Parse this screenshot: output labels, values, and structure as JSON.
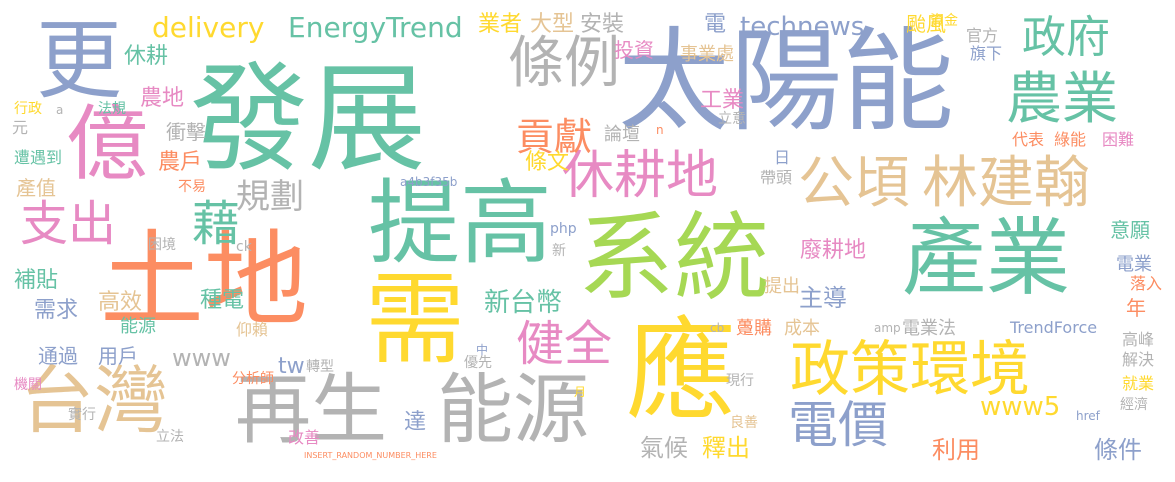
{
  "palette": {
    "green": "#66c2a5",
    "orange": "#fc8d62",
    "blue": "#8da0cb",
    "pink": "#e78ac3",
    "lime": "#a6d854",
    "yellow": "#ffd92f",
    "tan": "#e5c494",
    "gray": "#b3b3b3"
  },
  "words": [
    {
      "text": "發展",
      "color": "green",
      "size": 118
    },
    {
      "text": "太陽能",
      "color": "blue",
      "size": 112
    },
    {
      "text": "土地",
      "color": "orange",
      "size": 104
    },
    {
      "text": "系統",
      "color": "lime",
      "size": 96
    },
    {
      "text": "提高",
      "color": "green",
      "size": 92
    },
    {
      "text": "應",
      "color": "yellow",
      "size": 110
    },
    {
      "text": "需",
      "color": "yellow",
      "size": 100
    },
    {
      "text": "產業",
      "color": "green",
      "size": 84
    },
    {
      "text": "更",
      "color": "blue",
      "size": 86
    },
    {
      "text": "億",
      "color": "pink",
      "size": 82
    },
    {
      "text": "再生",
      "color": "gray",
      "size": 76
    },
    {
      "text": "能源",
      "color": "gray",
      "size": 76
    },
    {
      "text": "台灣",
      "color": "tan",
      "size": 74
    },
    {
      "text": "政策環境",
      "color": "yellow",
      "size": 60
    },
    {
      "text": "公頃",
      "color": "tan",
      "size": 56
    },
    {
      "text": "林建翰",
      "color": "tan",
      "size": 56
    },
    {
      "text": "條例",
      "color": "gray",
      "size": 56
    },
    {
      "text": "農業",
      "color": "green",
      "size": 56
    },
    {
      "text": "休耕地",
      "color": "pink",
      "size": 52
    },
    {
      "text": "電價",
      "color": "blue",
      "size": 50
    },
    {
      "text": "健全",
      "color": "pink",
      "size": 48
    },
    {
      "text": "支出",
      "color": "pink",
      "size": 48
    },
    {
      "text": "藉",
      "color": "green",
      "size": 48
    },
    {
      "text": "政府",
      "color": "green",
      "size": 44
    },
    {
      "text": "貢獻",
      "color": "orange",
      "size": 38
    },
    {
      "text": "規劃",
      "color": "gray",
      "size": 34
    },
    {
      "text": "EnergyTrend",
      "color": "green",
      "size": 28
    },
    {
      "text": "delivery",
      "color": "yellow",
      "size": 28
    },
    {
      "text": "technews",
      "color": "blue",
      "size": 26
    },
    {
      "text": "新台幣",
      "color": "green",
      "size": 26
    },
    {
      "text": "www5",
      "color": "yellow",
      "size": 26
    },
    {
      "text": "www",
      "color": "gray",
      "size": 24
    },
    {
      "text": "氣候",
      "color": "gray",
      "size": 24
    },
    {
      "text": "釋出",
      "color": "yellow",
      "size": 24
    },
    {
      "text": "利用",
      "color": "orange",
      "size": 24
    },
    {
      "text": "條件",
      "color": "blue",
      "size": 24
    },
    {
      "text": "達",
      "color": "blue",
      "size": 22
    },
    {
      "text": "tw",
      "color": "blue",
      "size": 22
    },
    {
      "text": "主導",
      "color": "blue",
      "size": 24
    },
    {
      "text": "廢耕地",
      "color": "pink",
      "size": 22
    },
    {
      "text": "高效",
      "color": "tan",
      "size": 22
    },
    {
      "text": "種電",
      "color": "green",
      "size": 22
    },
    {
      "text": "需求",
      "color": "blue",
      "size": 22
    },
    {
      "text": "能源",
      "color": "green",
      "size": 18
    },
    {
      "text": "補貼",
      "color": "green",
      "size": 22
    },
    {
      "text": "農地",
      "color": "pink",
      "size": 22
    },
    {
      "text": "休耕",
      "color": "green",
      "size": 22
    },
    {
      "text": "農戶",
      "color": "orange",
      "size": 22
    },
    {
      "text": "衝擊",
      "color": "gray",
      "size": 20
    },
    {
      "text": "條文",
      "color": "yellow",
      "size": 22
    },
    {
      "text": "工業",
      "color": "pink",
      "size": 22
    },
    {
      "text": "業者",
      "color": "yellow",
      "size": 22
    },
    {
      "text": "大型",
      "color": "tan",
      "size": 22
    },
    {
      "text": "安裝",
      "color": "gray",
      "size": 22
    },
    {
      "text": "電",
      "color": "blue",
      "size": 22
    },
    {
      "text": "投資",
      "color": "pink",
      "size": 20
    },
    {
      "text": "事業處",
      "color": "tan",
      "size": 18
    },
    {
      "text": "颱風",
      "color": "yellow",
      "size": 20
    },
    {
      "text": "官方",
      "color": "gray",
      "size": 16
    },
    {
      "text": "旗下",
      "color": "blue",
      "size": 16
    },
    {
      "text": "資金",
      "color": "yellow",
      "size": 14
    },
    {
      "text": "論壇",
      "color": "gray",
      "size": 18
    },
    {
      "text": "立意",
      "color": "gray",
      "size": 14
    },
    {
      "text": "代表",
      "color": "orange",
      "size": 16
    },
    {
      "text": "綠能",
      "color": "orange",
      "size": 16
    },
    {
      "text": "困難",
      "color": "pink",
      "size": 16
    },
    {
      "text": "帶頭",
      "color": "gray",
      "size": 16
    },
    {
      "text": "日",
      "color": "blue",
      "size": 16
    },
    {
      "text": "意願",
      "color": "green",
      "size": 20
    },
    {
      "text": "電業",
      "color": "blue",
      "size": 18
    },
    {
      "text": "落入",
      "color": "orange",
      "size": 16
    },
    {
      "text": "年",
      "color": "orange",
      "size": 20
    },
    {
      "text": "提出",
      "color": "tan",
      "size": 18
    },
    {
      "text": "成本",
      "color": "tan",
      "size": 18
    },
    {
      "text": "躉購",
      "color": "orange",
      "size": 18
    },
    {
      "text": "電業法",
      "color": "gray",
      "size": 18
    },
    {
      "text": "TrendForce",
      "color": "blue",
      "size": 16
    },
    {
      "text": "高峰",
      "color": "gray",
      "size": 16
    },
    {
      "text": "解決",
      "color": "gray",
      "size": 16
    },
    {
      "text": "就業",
      "color": "yellow",
      "size": 16
    },
    {
      "text": "經濟",
      "color": "gray",
      "size": 14
    },
    {
      "text": "產值",
      "color": "tan",
      "size": 20
    },
    {
      "text": "遭遇到",
      "color": "green",
      "size": 16
    },
    {
      "text": "元",
      "color": "gray",
      "size": 16
    },
    {
      "text": "行政",
      "color": "yellow",
      "size": 14
    },
    {
      "text": "法規",
      "color": "green",
      "size": 14
    },
    {
      "text": "通過",
      "color": "blue",
      "size": 20
    },
    {
      "text": "用戶",
      "color": "blue",
      "size": 20
    },
    {
      "text": "仰賴",
      "color": "tan",
      "size": 16
    },
    {
      "text": "轉型",
      "color": "gray",
      "size": 14
    },
    {
      "text": "分析師",
      "color": "orange",
      "size": 14
    },
    {
      "text": "優先",
      "color": "gray",
      "size": 14
    },
    {
      "text": "現行",
      "color": "gray",
      "size": 14
    },
    {
      "text": "良善",
      "color": "tan",
      "size": 14
    },
    {
      "text": "改善",
      "color": "pink",
      "size": 16
    },
    {
      "text": "實行",
      "color": "gray",
      "size": 14
    },
    {
      "text": "立法",
      "color": "gray",
      "size": 14
    },
    {
      "text": "機關",
      "color": "pink",
      "size": 14
    },
    {
      "text": "困境",
      "color": "gray",
      "size": 14
    },
    {
      "text": "不易",
      "color": "orange",
      "size": 14
    },
    {
      "text": "ck",
      "color": "gray",
      "size": 14
    },
    {
      "text": "php",
      "color": "blue",
      "size": 14
    },
    {
      "text": "新",
      "color": "gray",
      "size": 14
    },
    {
      "text": "a4b3f35b",
      "color": "blue",
      "size": 12
    },
    {
      "text": "amp",
      "color": "gray",
      "size": 12
    },
    {
      "text": "cb",
      "color": "gray",
      "size": 12
    },
    {
      "text": "href",
      "color": "blue",
      "size": 12
    },
    {
      "text": "中",
      "color": "blue",
      "size": 12
    },
    {
      "text": "月",
      "color": "yellow",
      "size": 12
    },
    {
      "text": "n",
      "color": "orange",
      "size": 12
    },
    {
      "text": "a",
      "color": "gray",
      "size": 12
    },
    {
      "text": "INSERT_RANDOM_NUMBER_HERE",
      "color": "orange",
      "size": 8
    }
  ]
}
